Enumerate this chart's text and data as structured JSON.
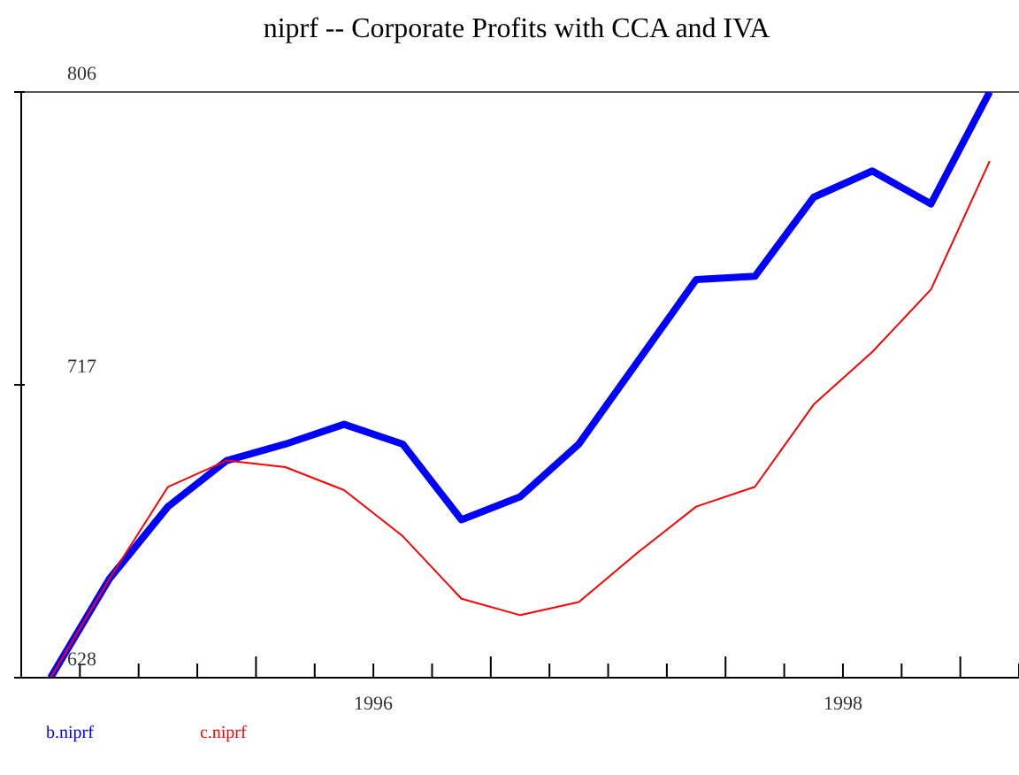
{
  "chart_data": {
    "type": "line",
    "title": "niprf -- Corporate Profits with CCA and IVA",
    "x": [
      1995.125,
      1995.375,
      1995.625,
      1995.875,
      1996.125,
      1996.375,
      1996.625,
      1996.875,
      1997.125,
      1997.375,
      1997.625,
      1997.875,
      1998.125,
      1998.375,
      1998.625,
      1998.875,
      1999.125
    ],
    "series": [
      {
        "name": "b.niprf",
        "color": "#0000ff",
        "values": [
          628,
          658,
          680,
          694,
          699,
          705,
          699,
          676,
          683,
          699,
          724,
          749,
          750,
          774,
          782,
          772,
          806
        ]
      },
      {
        "name": "c.niprf",
        "color": "#ff0000",
        "values": [
          628,
          658,
          686,
          694,
          692,
          685,
          671,
          652,
          647,
          651,
          666,
          680,
          686,
          711,
          727,
          746,
          785
        ]
      }
    ],
    "xlim": [
      1995,
      1999.25
    ],
    "xticks": [
      {
        "value": 1995,
        "label": null
      },
      {
        "value": 1995.25,
        "label": null
      },
      {
        "value": 1995.5,
        "label": null
      },
      {
        "value": 1995.75,
        "label": null
      },
      {
        "value": 1996,
        "label": null
      },
      {
        "value": 1996.25,
        "label": null
      },
      {
        "value": 1996.5,
        "label": "1996"
      },
      {
        "value": 1996.75,
        "label": null
      },
      {
        "value": 1997,
        "label": null
      },
      {
        "value": 1997.25,
        "label": null
      },
      {
        "value": 1997.5,
        "label": null
      },
      {
        "value": 1997.75,
        "label": null
      },
      {
        "value": 1998,
        "label": null
      },
      {
        "value": 1998.25,
        "label": null
      },
      {
        "value": 1998.5,
        "label": "1998"
      },
      {
        "value": 1998.75,
        "label": null
      },
      {
        "value": 1999,
        "label": null
      },
      {
        "value": 1999.25,
        "label": null
      }
    ],
    "ylim": [
      628,
      806
    ],
    "yticks": [
      628,
      717,
      806
    ],
    "legend": "bottom",
    "marker": "none",
    "line_style": "solid"
  }
}
